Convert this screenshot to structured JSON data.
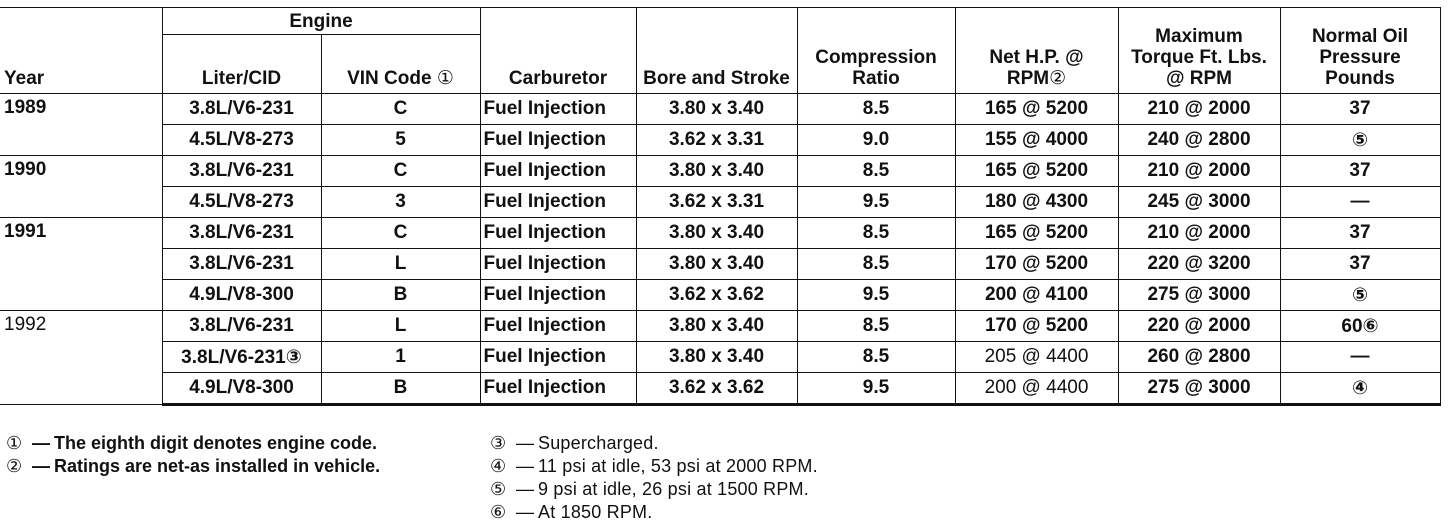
{
  "headers": {
    "year": "Year",
    "engine": "Engine",
    "liter_cid": "Liter/CID",
    "vin_code": "VIN Code",
    "vin_mark": "①",
    "carburetor": "Carburetor",
    "bore_stroke": "Bore and Stroke",
    "compression": "Compression Ratio",
    "net_hp": "Net H.P. @ RPM",
    "net_hp_mark": "②",
    "torque": "Maximum Torque Ft. Lbs. @ RPM",
    "oil_pressure": "Normal Oil Pressure Pounds"
  },
  "rows": [
    {
      "year": "1989",
      "liter": "3.8L/V6-231",
      "vin": "C",
      "carb": "Fuel Injection",
      "bore": "3.80 x 3.40",
      "comp": "8.5",
      "hp": "165 @ 5200",
      "torque": "210 @ 2000",
      "oil": "37"
    },
    {
      "year": "",
      "liter": "4.5L/V8-273",
      "vin": "5",
      "carb": "Fuel Injection",
      "bore": "3.62 x 3.31",
      "comp": "9.0",
      "hp": "155 @ 4000",
      "torque": "240 @ 2800",
      "oil": "⑤"
    },
    {
      "year": "1990",
      "liter": "3.8L/V6-231",
      "vin": "C",
      "carb": "Fuel Injection",
      "bore": "3.80 x 3.40",
      "comp": "8.5",
      "hp": "165 @ 5200",
      "torque": "210 @ 2000",
      "oil": "37"
    },
    {
      "year": "",
      "liter": "4.5L/V8-273",
      "vin": "3",
      "carb": "Fuel Injection",
      "bore": "3.62 x 3.31",
      "comp": "9.5",
      "hp": "180 @ 4300",
      "torque": "245 @ 3000",
      "oil": "—"
    },
    {
      "year": "1991",
      "liter": "3.8L/V6-231",
      "vin": "C",
      "carb": "Fuel Injection",
      "bore": "3.80 x 3.40",
      "comp": "8.5",
      "hp": "165 @ 5200",
      "torque": "210 @ 2000",
      "oil": "37"
    },
    {
      "year": "",
      "liter": "3.8L/V6-231",
      "vin": "L",
      "carb": "Fuel Injection",
      "bore": "3.80 x 3.40",
      "comp": "8.5",
      "hp": "170 @ 5200",
      "torque": "220 @ 3200",
      "oil": "37"
    },
    {
      "year": "",
      "liter": "4.9L/V8-300",
      "vin": "B",
      "carb": "Fuel Injection",
      "bore": "3.62 x 3.62",
      "comp": "9.5",
      "hp": "200 @ 4100",
      "torque": "275 @ 3000",
      "oil": "⑤"
    },
    {
      "year": "1992",
      "liter": "3.8L/V6-231",
      "vin": "L",
      "carb": "Fuel Injection",
      "bore": "3.80 x 3.40",
      "comp": "8.5",
      "hp": "170 @ 5200",
      "torque": "220 @ 2000",
      "oil": "60⑥"
    },
    {
      "year": "",
      "liter": "3.8L/V6-231③",
      "vin": "1",
      "carb": "Fuel Injection",
      "bore": "3.80 x 3.40",
      "comp": "8.5",
      "hp": "205 @ 4400",
      "torque": "260 @ 2800",
      "oil": "—"
    },
    {
      "year": "",
      "liter": "4.9L/V8-300",
      "vin": "B",
      "carb": "Fuel Injection",
      "bore": "3.62 x 3.62",
      "comp": "9.5",
      "hp": "200 @ 4400",
      "torque": "275 @ 3000",
      "oil": "④"
    }
  ],
  "footnotes_left": [
    {
      "mark": "①",
      "text": "The eighth digit denotes engine code."
    },
    {
      "mark": "②",
      "text": "Ratings are net-as installed in vehicle."
    }
  ],
  "footnotes_right": [
    {
      "mark": "③",
      "text": "Supercharged."
    },
    {
      "mark": "④",
      "text": "11 psi at idle, 53 psi at 2000 RPM."
    },
    {
      "mark": "⑤",
      "text": "9 psi at idle, 26 psi at 1500 RPM."
    },
    {
      "mark": "⑥",
      "text": "At 1850 RPM."
    }
  ],
  "dash": "—"
}
